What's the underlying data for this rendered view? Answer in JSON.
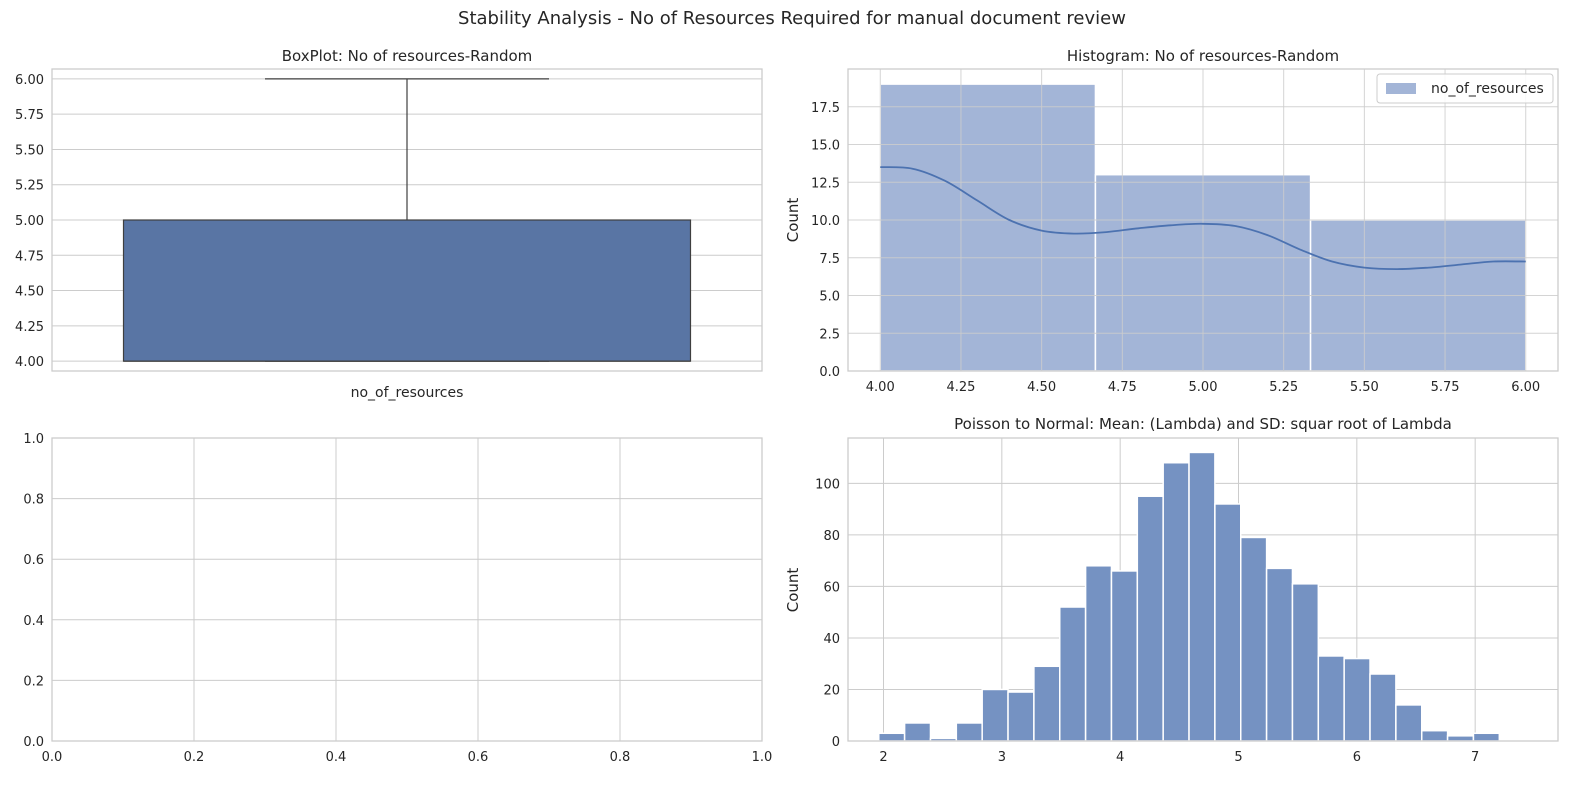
{
  "figure": {
    "suptitle": "Stability Analysis - No of Resources Required for manual document review"
  },
  "colors": {
    "primary": "#4c72b0",
    "box_fill": "#5975a4",
    "hist_fill": "#a3b5d7",
    "poisson_fill": "#7592c2",
    "grid": "#cccccc",
    "spine": "#cccccc",
    "text": "#262626",
    "edge": "#ffffff"
  },
  "chart_data": [
    {
      "id": "boxplot",
      "type": "box",
      "title": "BoxPlot: No of resources-Random",
      "xlabel": "",
      "ylabel": "",
      "x_tick_labels": [
        "no_of_resources"
      ],
      "ylim": [
        3.93,
        6.07
      ],
      "yticks": [
        4.0,
        4.25,
        4.5,
        4.75,
        5.0,
        5.25,
        5.5,
        5.75,
        6.0
      ],
      "ytick_labels": [
        "4.00",
        "4.25",
        "4.50",
        "4.75",
        "5.00",
        "5.25",
        "5.50",
        "5.75",
        "6.00"
      ],
      "box": {
        "min": 4.0,
        "q1": 4.0,
        "median": 4.0,
        "q3": 5.0,
        "max": 6.0
      },
      "grid": true
    },
    {
      "id": "histogram",
      "type": "bar",
      "title": "Histogram: No of resources-Random",
      "xlabel": "",
      "ylabel": "Count",
      "legend": {
        "entries": [
          "no_of_resources"
        ],
        "position": "top-right"
      },
      "xlim": [
        3.9,
        6.1
      ],
      "ylim": [
        0,
        20
      ],
      "xticks": [
        4.0,
        4.25,
        4.5,
        4.75,
        5.0,
        5.25,
        5.5,
        5.75,
        6.0
      ],
      "xtick_labels": [
        "4.00",
        "4.25",
        "4.50",
        "4.75",
        "5.00",
        "5.25",
        "5.50",
        "5.75",
        "6.00"
      ],
      "yticks": [
        0,
        2.5,
        5,
        7.5,
        10,
        12.5,
        15,
        17.5
      ],
      "ytick_labels": [
        "0.0",
        "2.5",
        "5.0",
        "7.5",
        "10.0",
        "12.5",
        "15.0",
        "17.5"
      ],
      "bins": [
        {
          "x0": 4.0,
          "x1": 4.6667,
          "count": 19
        },
        {
          "x0": 4.6667,
          "x1": 5.3333,
          "count": 13
        },
        {
          "x0": 5.3333,
          "x1": 6.0,
          "count": 10
        }
      ],
      "kde": {
        "x": [
          4.0,
          4.1,
          4.2,
          4.3,
          4.4,
          4.5,
          4.6,
          4.7,
          4.8,
          4.9,
          5.0,
          5.1,
          5.2,
          5.3,
          5.4,
          5.5,
          5.6,
          5.7,
          5.8,
          5.9,
          6.0
        ],
        "y": [
          13.5,
          13.4,
          12.6,
          11.3,
          10.0,
          9.3,
          9.1,
          9.2,
          9.45,
          9.65,
          9.75,
          9.6,
          9.0,
          8.05,
          7.25,
          6.85,
          6.75,
          6.85,
          7.05,
          7.25,
          7.25
        ]
      },
      "grid": true
    },
    {
      "id": "empty",
      "type": "empty",
      "title": "",
      "xlim": [
        0,
        1
      ],
      "ylim": [
        0,
        1
      ],
      "xticks": [
        0,
        0.2,
        0.4,
        0.6,
        0.8,
        1.0
      ],
      "xtick_labels": [
        "0.0",
        "0.2",
        "0.4",
        "0.6",
        "0.8",
        "1.0"
      ],
      "yticks": [
        0,
        0.2,
        0.4,
        0.6,
        0.8,
        1.0
      ],
      "ytick_labels": [
        "0.0",
        "0.2",
        "0.4",
        "0.6",
        "0.8",
        "1.0"
      ],
      "grid": true
    },
    {
      "id": "poisson",
      "type": "bar",
      "title": "Poisson to Normal: Mean: (Lambda) and SD: squar root of Lambda",
      "xlabel": "",
      "ylabel": "Count",
      "xlim": [
        1.7,
        7.7
      ],
      "ylim": [
        0,
        117.6
      ],
      "xticks": [
        2,
        3,
        4,
        5,
        6,
        7
      ],
      "xtick_labels": [
        "2",
        "3",
        "4",
        "5",
        "6",
        "7"
      ],
      "yticks": [
        0,
        20,
        40,
        60,
        80,
        100
      ],
      "ytick_labels": [
        "0",
        "20",
        "40",
        "60",
        "80",
        "100"
      ],
      "bin_start": 1.96,
      "bin_width": 0.2185,
      "counts": [
        3,
        7,
        1,
        7,
        20,
        19,
        29,
        52,
        68,
        66,
        95,
        108,
        112,
        92,
        79,
        67,
        61,
        33,
        32,
        26,
        14,
        4,
        2,
        3
      ],
      "grid": true
    }
  ]
}
